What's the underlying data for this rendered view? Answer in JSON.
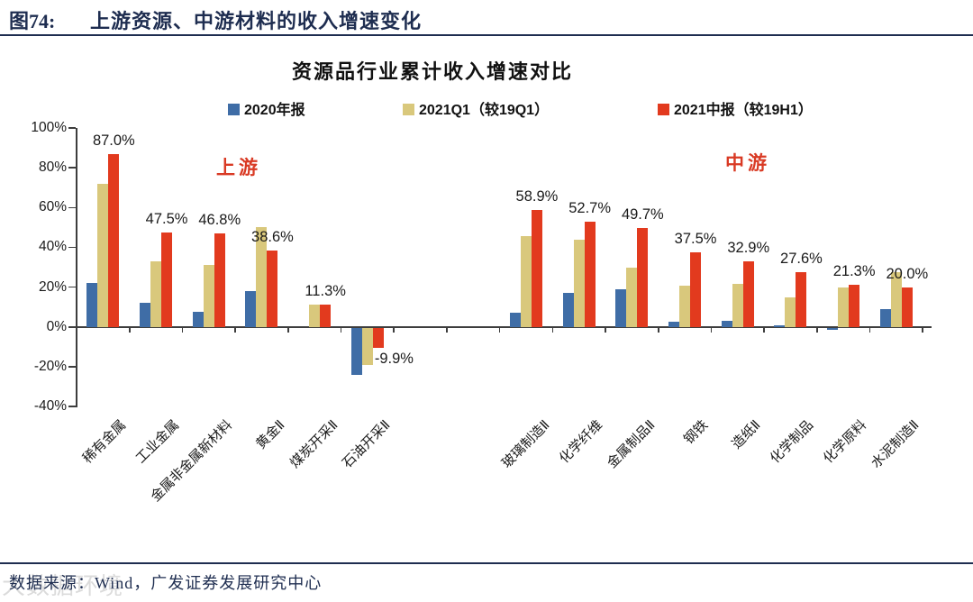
{
  "header": {
    "figure_label": "图74:",
    "title": "上游资源、中游材料的收入增速变化"
  },
  "chart_data": {
    "type": "bar",
    "title": "资源品行业累计收入增速对比",
    "legend_position": "top",
    "grid": false,
    "ylim": [
      -40,
      100
    ],
    "ytick_step": 20,
    "ytick_labels": [
      "100%",
      "80%",
      "60%",
      "40%",
      "20%",
      "0%",
      "-20%",
      "-40%"
    ],
    "region_labels": [
      {
        "text": "上游",
        "color": "#d93a24"
      },
      {
        "text": "中游",
        "color": "#d93a24"
      }
    ],
    "categories": [
      "稀有金属",
      "工业金属",
      "金属非金属新材料",
      "黄金Ⅱ",
      "煤炭开采Ⅱ",
      "石油开采Ⅱ",
      "玻璃制造Ⅱ",
      "化学纤维",
      "金属制品Ⅱ",
      "钢铁",
      "造纸Ⅱ",
      "化学制品",
      "化学原料",
      "水泥制造Ⅱ"
    ],
    "group_split_after_index": 5,
    "series": [
      {
        "name": "2020年报",
        "color": "#3f6da6",
        "values": [
          22,
          12,
          7.5,
          18,
          0,
          -23.5,
          7,
          17,
          19,
          2.5,
          3,
          1,
          -1,
          9
        ]
      },
      {
        "name": "2021Q1（较19Q1）",
        "color": "#d9c87c",
        "values": [
          72,
          33,
          31,
          50,
          11,
          -18.5,
          45.8,
          44,
          30,
          20.5,
          21.8,
          15,
          19.8,
          27.3
        ]
      },
      {
        "name": "2021中报（较19H1）",
        "color": "#e23a1e",
        "values": [
          87.0,
          47.5,
          46.8,
          38.6,
          11.3,
          -9.9,
          58.9,
          52.7,
          49.7,
          37.5,
          32.9,
          27.6,
          21.3,
          20.0
        ]
      }
    ],
    "data_label_series": "2021中报（较19H1）",
    "data_labels": [
      "87.0%",
      "47.5%",
      "46.8%",
      "38.6%",
      "11.3%",
      "-9.9%",
      "58.9%",
      "52.7%",
      "49.7%",
      "37.5%",
      "32.9%",
      "27.6%",
      "21.3%",
      "20.0%"
    ]
  },
  "footer": {
    "text": "数据来源：Wind，广发证券发展研究中心",
    "watermark": "大数据环境"
  }
}
